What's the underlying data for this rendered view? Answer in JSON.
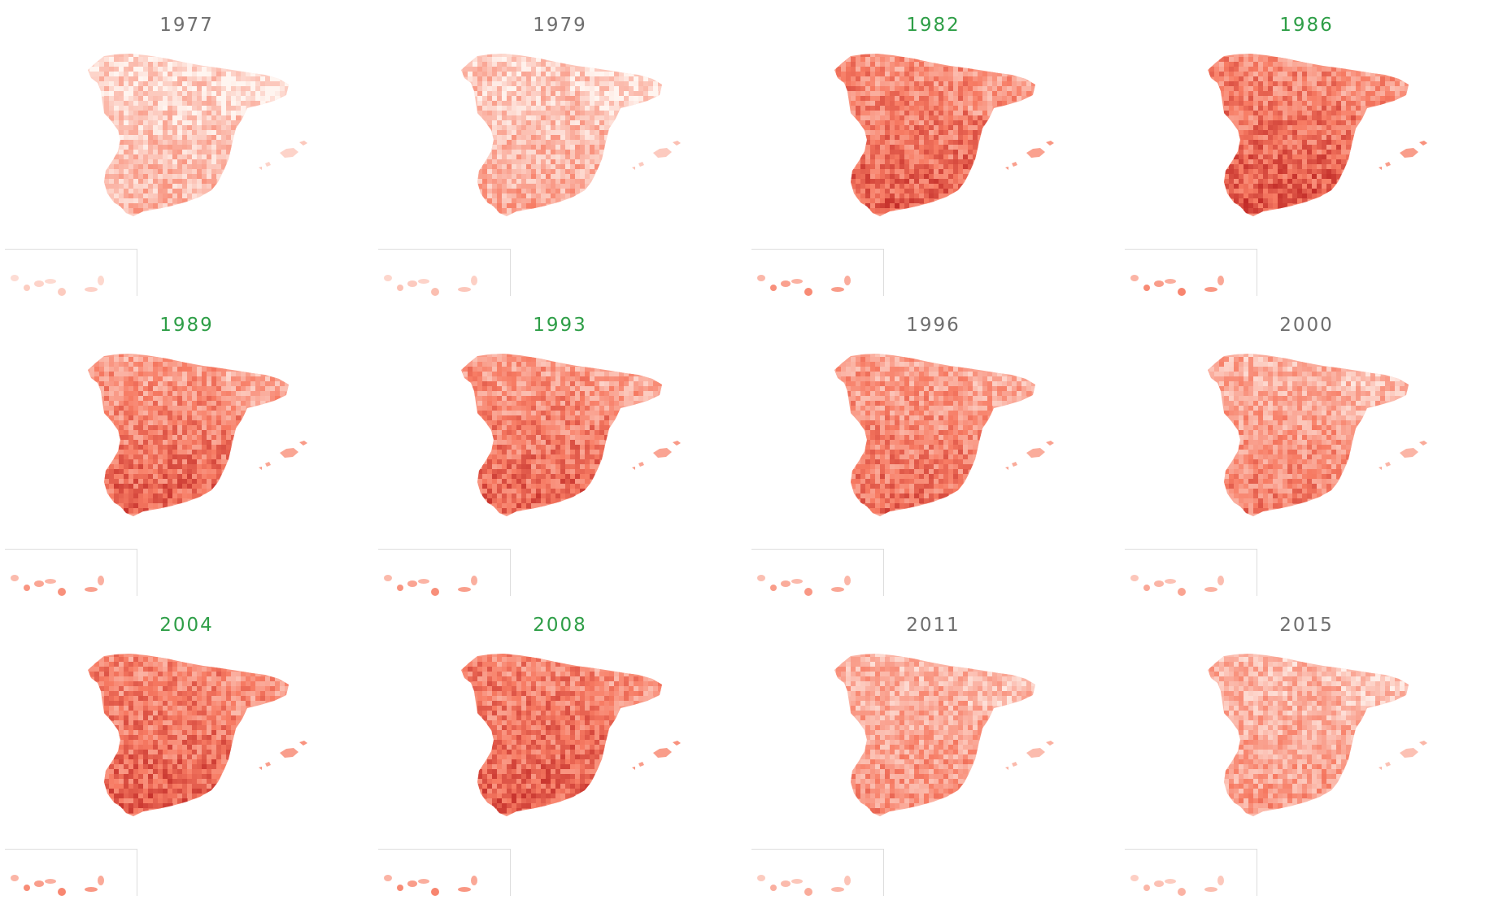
{
  "palette": {
    "lightest": "#fff5f0",
    "mid": "#f77b63",
    "darkest": "#b81c1c",
    "winner_title_color": "#2e9e47",
    "other_title_color": "#6f6f6f"
  },
  "maps": [
    {
      "year": "1977",
      "highlight": false,
      "intensity": 0.22,
      "north": 0.13,
      "south": 0.32
    },
    {
      "year": "1979",
      "highlight": false,
      "intensity": 0.28,
      "north": 0.16,
      "south": 0.4
    },
    {
      "year": "1982",
      "highlight": true,
      "intensity": 0.55,
      "north": 0.45,
      "south": 0.74
    },
    {
      "year": "1986",
      "highlight": true,
      "intensity": 0.58,
      "north": 0.48,
      "south": 0.78
    },
    {
      "year": "1989",
      "highlight": true,
      "intensity": 0.52,
      "north": 0.4,
      "south": 0.72
    },
    {
      "year": "1993",
      "highlight": true,
      "intensity": 0.53,
      "north": 0.4,
      "south": 0.72
    },
    {
      "year": "1996",
      "highlight": false,
      "intensity": 0.48,
      "north": 0.38,
      "south": 0.66
    },
    {
      "year": "2000",
      "highlight": false,
      "intensity": 0.42,
      "north": 0.3,
      "south": 0.58
    },
    {
      "year": "2004",
      "highlight": true,
      "intensity": 0.57,
      "north": 0.5,
      "south": 0.72
    },
    {
      "year": "2008",
      "highlight": true,
      "intensity": 0.58,
      "north": 0.52,
      "south": 0.72
    },
    {
      "year": "2011",
      "highlight": false,
      "intensity": 0.38,
      "north": 0.3,
      "south": 0.5
    },
    {
      "year": "2015",
      "highlight": false,
      "intensity": 0.34,
      "north": 0.26,
      "south": 0.46
    }
  ]
}
